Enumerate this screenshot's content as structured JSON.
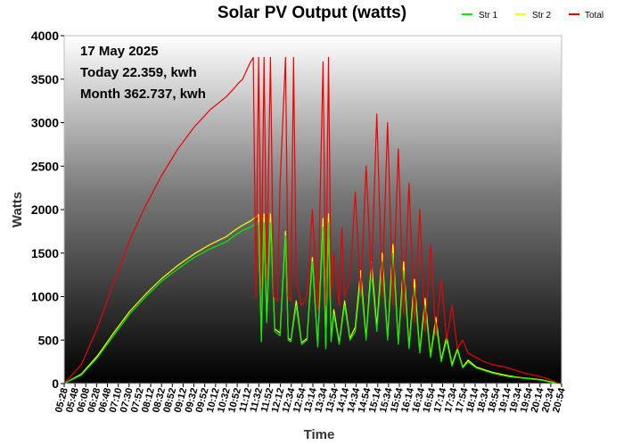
{
  "chart_data": {
    "type": "line",
    "title": "Solar PV Output (watts)",
    "xlabel": "Time",
    "ylabel": "Watts",
    "ylim": [
      0,
      4000
    ],
    "yticks": [
      0,
      500,
      1000,
      1500,
      2000,
      2500,
      3000,
      3500,
      4000
    ],
    "xlim": [
      "05:28",
      "20:54"
    ],
    "xticks": [
      "05:28",
      "05:48",
      "06:08",
      "06:28",
      "06:48",
      "07:10",
      "07:30",
      "07:52",
      "08:12",
      "08:32",
      "08:52",
      "09:12",
      "09:32",
      "09:52",
      "10:12",
      "10:32",
      "10:52",
      "11:12",
      "11:32",
      "11:52",
      "12:12",
      "12:34",
      "12:54",
      "13:14",
      "13:34",
      "13:54",
      "14:14",
      "14:34",
      "14:54",
      "15:14",
      "15:34",
      "15:54",
      "16:14",
      "16:34",
      "16:54",
      "17:14",
      "17:34",
      "17:54",
      "18:14",
      "18:34",
      "18:54",
      "19:14",
      "19:34",
      "19:54",
      "20:14",
      "20:34",
      "20:54"
    ],
    "legend_position": "top-right",
    "grid": false,
    "annotations": [
      "17 May 2025",
      "Today 22.359, kwh",
      "Month 362.737, kwh"
    ],
    "series": [
      {
        "name": "Str 1",
        "color": "#00ee00",
        "x": [
          "05:28",
          "06:00",
          "06:30",
          "07:00",
          "07:30",
          "08:00",
          "08:30",
          "09:00",
          "09:30",
          "10:00",
          "10:30",
          "10:45",
          "11:00",
          "11:15",
          "11:30",
          "11:35",
          "11:40",
          "11:45",
          "11:52",
          "12:00",
          "12:10",
          "12:20",
          "12:25",
          "12:30",
          "12:40",
          "12:50",
          "13:00",
          "13:10",
          "13:20",
          "13:30",
          "13:35",
          "13:40",
          "13:45",
          "13:50",
          "14:00",
          "14:10",
          "14:20",
          "14:30",
          "14:40",
          "14:50",
          "15:00",
          "15:10",
          "15:20",
          "15:30",
          "15:40",
          "15:50",
          "16:00",
          "16:10",
          "16:20",
          "16:30",
          "16:40",
          "16:50",
          "17:00",
          "17:10",
          "17:20",
          "17:30",
          "17:40",
          "17:50",
          "18:00",
          "18:15",
          "18:30",
          "18:45",
          "19:00",
          "19:15",
          "19:30",
          "19:45",
          "20:00",
          "20:15",
          "20:30",
          "20:45",
          "20:54"
        ],
        "y": [
          0,
          100,
          300,
          550,
          800,
          1000,
          1180,
          1320,
          1450,
          1550,
          1630,
          1700,
          1760,
          1800,
          1850,
          480,
          1850,
          700,
          1850,
          600,
          550,
          1700,
          500,
          480,
          900,
          450,
          500,
          1400,
          420,
          1800,
          400,
          1850,
          480,
          800,
          450,
          900,
          500,
          600,
          1200,
          500,
          1300,
          600,
          1400,
          500,
          1500,
          450,
          1300,
          400,
          1100,
          350,
          900,
          300,
          700,
          250,
          500,
          200,
          380,
          180,
          250,
          180,
          150,
          120,
          100,
          80,
          70,
          60,
          50,
          40,
          20,
          5,
          0
        ]
      },
      {
        "name": "Str 2",
        "color": "#ffff00",
        "x": [
          "05:28",
          "06:00",
          "06:30",
          "07:00",
          "07:30",
          "08:00",
          "08:30",
          "09:00",
          "09:30",
          "10:00",
          "10:30",
          "10:45",
          "11:00",
          "11:15",
          "11:30",
          "11:35",
          "11:40",
          "11:45",
          "11:52",
          "12:00",
          "12:10",
          "12:20",
          "12:25",
          "12:30",
          "12:40",
          "12:50",
          "13:00",
          "13:10",
          "13:20",
          "13:30",
          "13:35",
          "13:40",
          "13:45",
          "13:50",
          "14:00",
          "14:10",
          "14:20",
          "14:30",
          "14:40",
          "14:50",
          "15:00",
          "15:10",
          "15:20",
          "15:30",
          "15:40",
          "15:50",
          "16:00",
          "16:10",
          "16:20",
          "16:30",
          "16:40",
          "16:50",
          "17:00",
          "17:10",
          "17:20",
          "17:30",
          "17:40",
          "17:50",
          "18:00",
          "18:15",
          "18:30",
          "18:45",
          "19:00",
          "19:15",
          "19:30",
          "19:45",
          "20:00",
          "20:15",
          "20:30",
          "20:45",
          "20:54"
        ],
        "y": [
          0,
          110,
          320,
          580,
          830,
          1030,
          1210,
          1360,
          1490,
          1600,
          1690,
          1760,
          1820,
          1870,
          1940,
          500,
          1950,
          730,
          1950,
          630,
          580,
          1750,
          520,
          500,
          950,
          470,
          520,
          1450,
          440,
          1900,
          420,
          1950,
          500,
          850,
          470,
          950,
          520,
          650,
          1300,
          520,
          1400,
          650,
          1500,
          520,
          1600,
          470,
          1400,
          420,
          1200,
          370,
          980,
          320,
          760,
          270,
          540,
          220,
          400,
          190,
          270,
          190,
          160,
          130,
          110,
          90,
          75,
          65,
          55,
          45,
          25,
          6,
          0
        ]
      },
      {
        "name": "Total",
        "color": "#ee0000",
        "x": [
          "05:28",
          "06:00",
          "06:30",
          "07:00",
          "07:30",
          "08:00",
          "08:30",
          "09:00",
          "09:30",
          "10:00",
          "10:30",
          "10:45",
          "10:52",
          "11:00",
          "11:15",
          "11:20",
          "11:25",
          "11:30",
          "11:35",
          "11:40",
          "11:45",
          "11:52",
          "11:58",
          "12:05",
          "12:10",
          "12:20",
          "12:25",
          "12:30",
          "12:35",
          "12:40",
          "12:50",
          "13:00",
          "13:10",
          "13:20",
          "13:30",
          "13:35",
          "13:40",
          "13:45",
          "13:50",
          "14:00",
          "14:05",
          "14:10",
          "14:20",
          "14:30",
          "14:40",
          "14:50",
          "15:00",
          "15:10",
          "15:20",
          "15:30",
          "15:40",
          "15:50",
          "16:00",
          "16:10",
          "16:20",
          "16:30",
          "16:40",
          "16:50",
          "17:00",
          "17:10",
          "17:20",
          "17:30",
          "17:40",
          "17:50",
          "18:00",
          "18:15",
          "18:30",
          "18:45",
          "19:00",
          "19:15",
          "19:30",
          "19:45",
          "20:00",
          "20:15",
          "20:30",
          "20:45",
          "20:54"
        ],
        "y": [
          0,
          220,
          640,
          1160,
          1650,
          2050,
          2400,
          2700,
          2950,
          3150,
          3300,
          3400,
          3450,
          3500,
          3700,
          3750,
          980,
          3750,
          1100,
          3750,
          1200,
          3750,
          1000,
          950,
          2300,
          3750,
          1000,
          950,
          3750,
          1200,
          900,
          1000,
          2000,
          850,
          3700,
          900,
          3750,
          1000,
          1500,
          900,
          1800,
          1000,
          1200,
          2200,
          1000,
          2500,
          1200,
          3100,
          1000,
          3000,
          900,
          2700,
          800,
          2300,
          700,
          2000,
          600,
          1600,
          550,
          1200,
          500,
          900,
          400,
          500,
          350,
          300,
          250,
          220,
          200,
          180,
          150,
          120,
          100,
          80,
          50,
          10,
          0
        ]
      }
    ]
  }
}
